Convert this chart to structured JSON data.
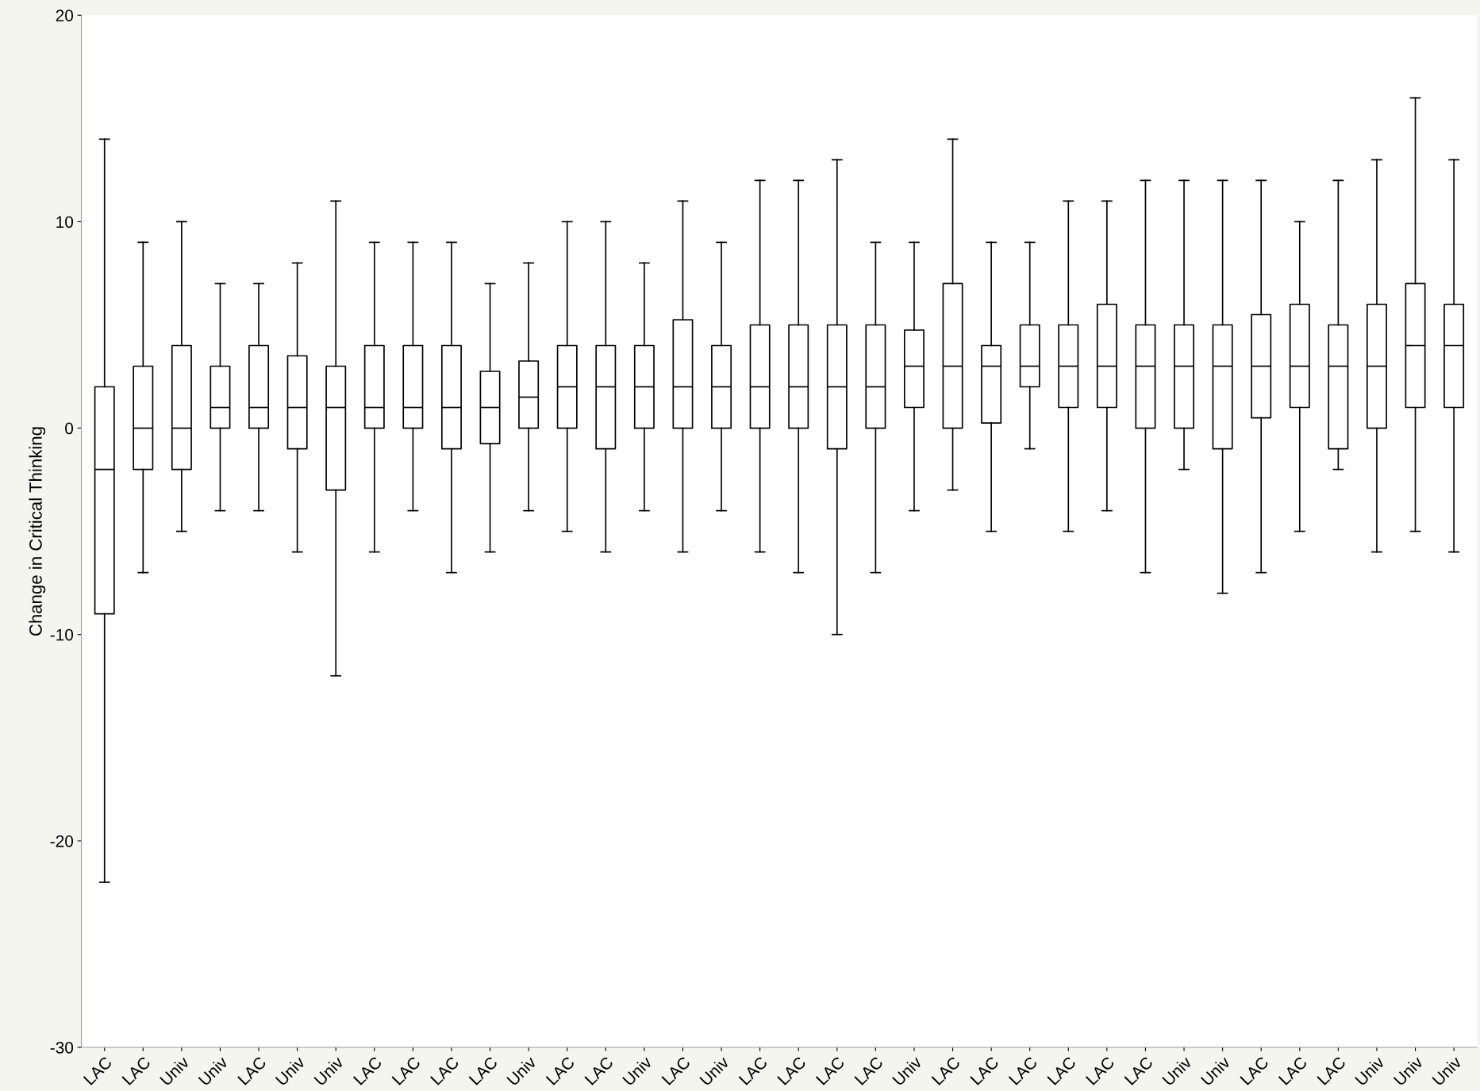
{
  "chart_data": {
    "type": "box",
    "ylabel": "Change in Critical Thinking",
    "ylim": [
      -30,
      20
    ],
    "yticks": [
      -30,
      -20,
      -10,
      0,
      10,
      20
    ],
    "grid": false,
    "categories": [
      "LAC",
      "LAC",
      "Univ",
      "Univ",
      "LAC",
      "Univ",
      "Univ",
      "LAC",
      "LAC",
      "LAC",
      "LAC",
      "Univ",
      "LAC",
      "LAC",
      "Univ",
      "LAC",
      "Univ",
      "LAC",
      "LAC",
      "LAC",
      "LAC",
      "Univ",
      "LAC",
      "LAC",
      "LAC",
      "LAC",
      "LAC",
      "LAC",
      "Univ",
      "Univ",
      "LAC",
      "LAC",
      "LAC",
      "Univ",
      "Univ",
      "Univ"
    ],
    "color": "#000000",
    "boxes": [
      {
        "low": -22,
        "q1": -9,
        "median": -2,
        "q3": 2,
        "high": 14
      },
      {
        "low": -7,
        "q1": -2,
        "median": 0,
        "q3": 3,
        "high": 9
      },
      {
        "low": -5,
        "q1": -2,
        "median": 0,
        "q3": 4,
        "high": 10
      },
      {
        "low": -4,
        "q1": 0,
        "median": 1,
        "q3": 3,
        "high": 7
      },
      {
        "low": -4,
        "q1": 0,
        "median": 1,
        "q3": 4,
        "high": 7
      },
      {
        "low": -6,
        "q1": -1,
        "median": 1,
        "q3": 3.5,
        "high": 8
      },
      {
        "low": -12,
        "q1": -3,
        "median": 1,
        "q3": 3,
        "high": 11
      },
      {
        "low": -6,
        "q1": 0,
        "median": 1,
        "q3": 4,
        "high": 9
      },
      {
        "low": -4,
        "q1": 0,
        "median": 1,
        "q3": 4,
        "high": 9
      },
      {
        "low": -7,
        "q1": -1,
        "median": 1,
        "q3": 4,
        "high": 9
      },
      {
        "low": -6,
        "q1": -0.75,
        "median": 1,
        "q3": 2.75,
        "high": 7
      },
      {
        "low": -4,
        "q1": 0,
        "median": 1.5,
        "q3": 3.25,
        "high": 8
      },
      {
        "low": -5,
        "q1": 0,
        "median": 2,
        "q3": 4,
        "high": 10
      },
      {
        "low": -6,
        "q1": -1,
        "median": 2,
        "q3": 4,
        "high": 10
      },
      {
        "low": -4,
        "q1": 0,
        "median": 2,
        "q3": 4,
        "high": 8
      },
      {
        "low": -6,
        "q1": 0,
        "median": 2,
        "q3": 5.25,
        "high": 11
      },
      {
        "low": -4,
        "q1": 0,
        "median": 2,
        "q3": 4,
        "high": 9
      },
      {
        "low": -6,
        "q1": 0,
        "median": 2,
        "q3": 5,
        "high": 12
      },
      {
        "low": -7,
        "q1": 0,
        "median": 2,
        "q3": 5,
        "high": 12
      },
      {
        "low": -10,
        "q1": -1,
        "median": 2,
        "q3": 5,
        "high": 13
      },
      {
        "low": -7,
        "q1": 0,
        "median": 2,
        "q3": 5,
        "high": 9
      },
      {
        "low": -4,
        "q1": 1,
        "median": 3,
        "q3": 4.75,
        "high": 9
      },
      {
        "low": -3,
        "q1": 0,
        "median": 3,
        "q3": 7,
        "high": 14
      },
      {
        "low": -5,
        "q1": 0.25,
        "median": 3,
        "q3": 4,
        "high": 9
      },
      {
        "low": -1,
        "q1": 2,
        "median": 3,
        "q3": 5,
        "high": 9
      },
      {
        "low": -5,
        "q1": 1,
        "median": 3,
        "q3": 5,
        "high": 11
      },
      {
        "low": -4,
        "q1": 1,
        "median": 3,
        "q3": 6,
        "high": 11
      },
      {
        "low": -7,
        "q1": 0,
        "median": 3,
        "q3": 5,
        "high": 12
      },
      {
        "low": -2,
        "q1": 0,
        "median": 3,
        "q3": 5,
        "high": 12
      },
      {
        "low": -8,
        "q1": -1,
        "median": 3,
        "q3": 5,
        "high": 12
      },
      {
        "low": -7,
        "q1": 0.5,
        "median": 3,
        "q3": 5.5,
        "high": 12
      },
      {
        "low": -5,
        "q1": 1,
        "median": 3,
        "q3": 6,
        "high": 10
      },
      {
        "low": -2,
        "q1": -1,
        "median": 3,
        "q3": 5,
        "high": 12
      },
      {
        "low": -6,
        "q1": 0,
        "median": 3,
        "q3": 6,
        "high": 13
      },
      {
        "low": -5,
        "q1": 1,
        "median": 4,
        "q3": 7,
        "high": 16
      },
      {
        "low": -6,
        "q1": 1,
        "median": 4,
        "q3": 6,
        "high": 13
      }
    ]
  }
}
